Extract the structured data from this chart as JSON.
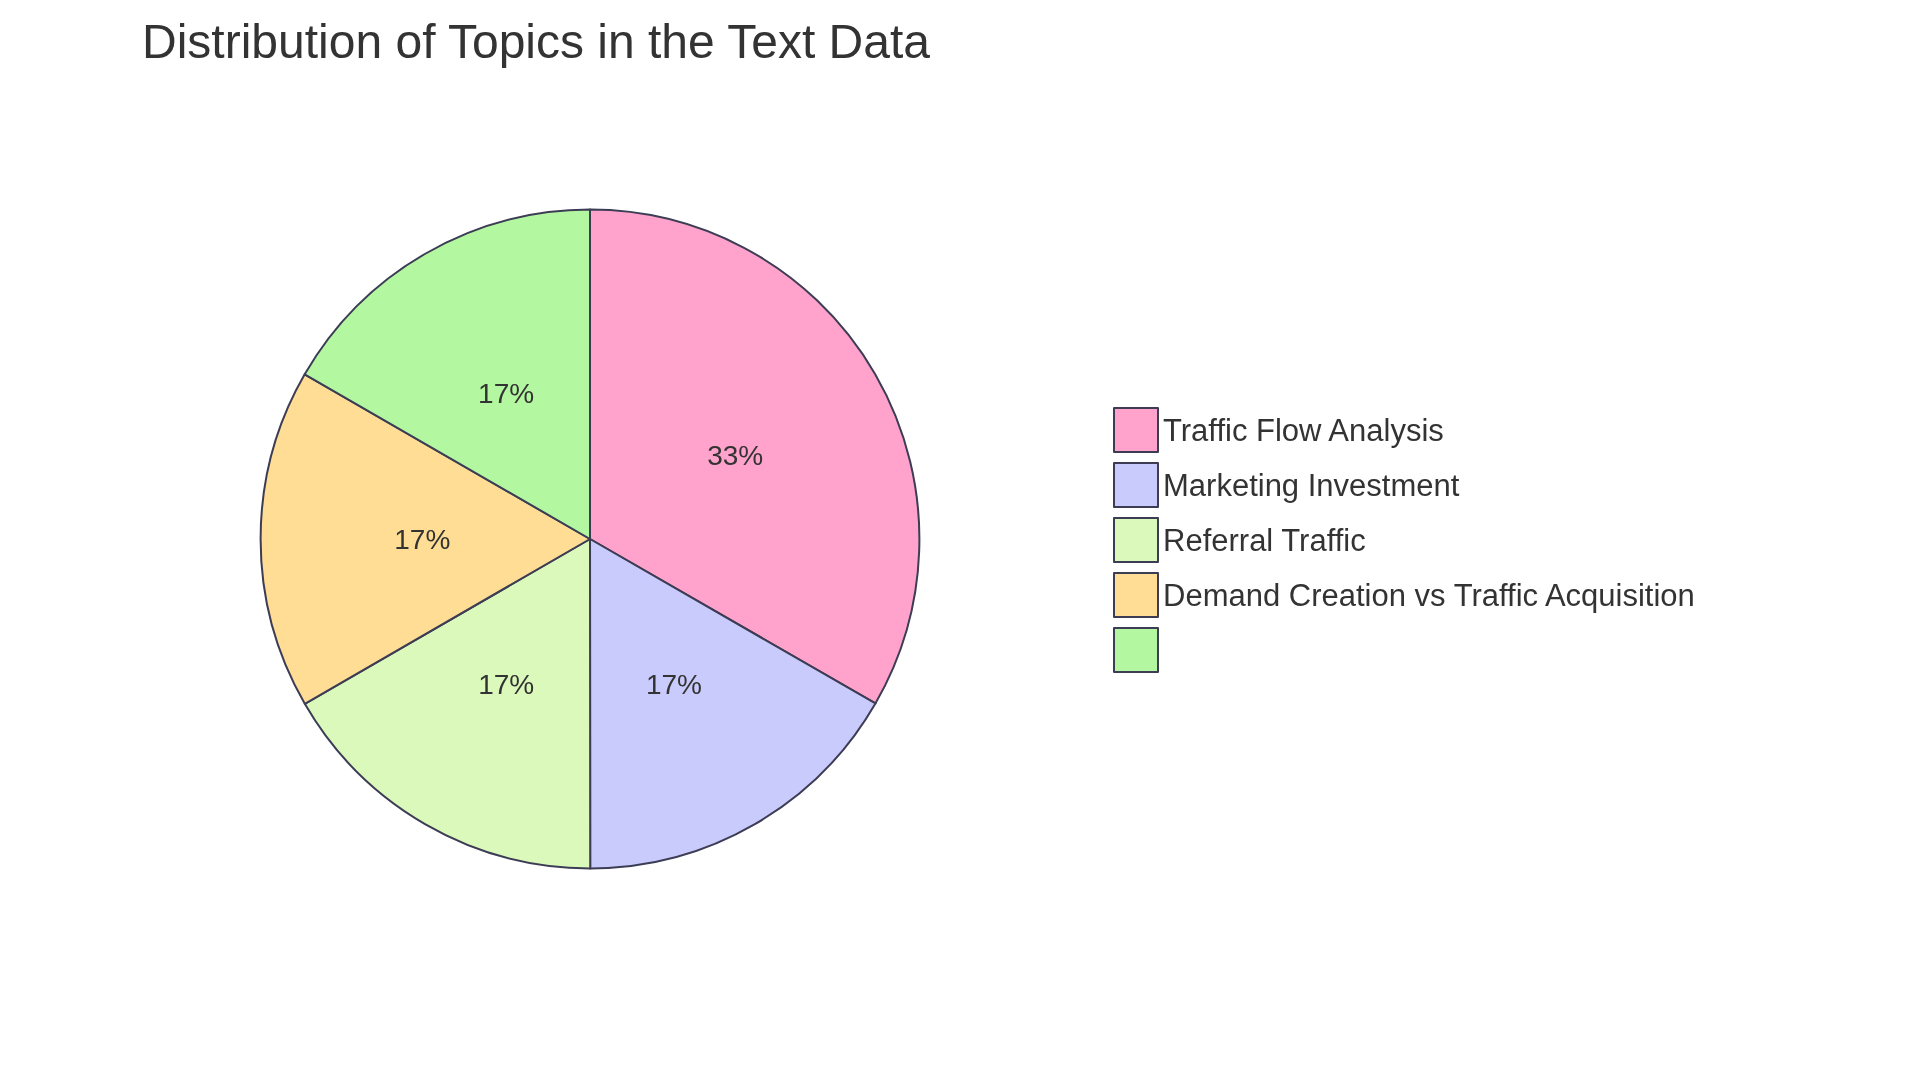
{
  "chart_data": {
    "type": "pie",
    "title": "Distribution of Topics in the Text Data",
    "categories": [
      "Traffic Flow Analysis",
      "Marketing Investment",
      "Referral Traffic",
      "Demand Creation vs Traffic Acquisition",
      null
    ],
    "values": [
      33.32,
      16.67,
      16.67,
      16.67,
      16.67
    ],
    "value_labels": [
      "33%",
      "17%",
      "17%",
      "17%",
      "17%"
    ],
    "colors": [
      "#ffa3cc",
      "#cacbfd",
      "#dbf9bb",
      "#ffdd94",
      "#b3f8a0"
    ],
    "legend": "right"
  }
}
